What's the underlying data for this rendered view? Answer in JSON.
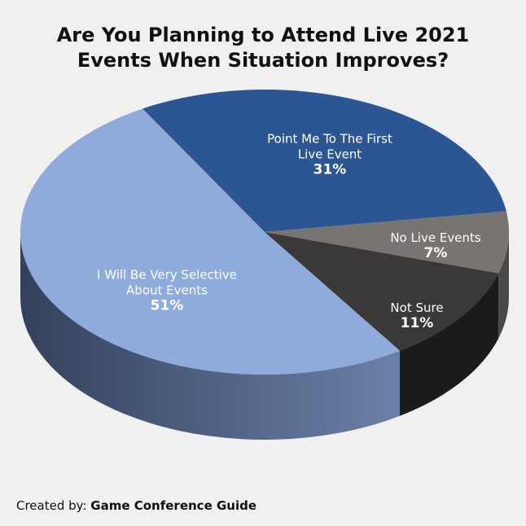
{
  "chart_data": {
    "type": "pie3d",
    "title": "Are You Planning to Attend Live 2021 Events When Situation Improves?",
    "categories": [
      "Point Me To The First Live Event",
      "No Live Events",
      "Not Sure",
      "I Will Be Very Selective About Events"
    ],
    "values": [
      31,
      7,
      11,
      51
    ],
    "value_labels": [
      "31%",
      "7%",
      "11%",
      "51%"
    ],
    "colors": [
      "#2c5594",
      "#777472",
      "#3a3839",
      "#8fabdc"
    ]
  },
  "credit": {
    "label": "Created by:",
    "source": "Game Conference Guide"
  }
}
